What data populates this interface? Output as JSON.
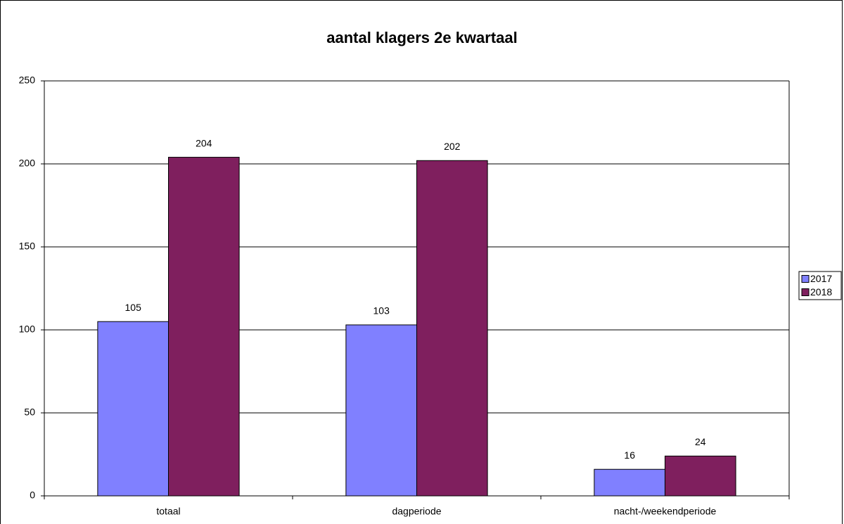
{
  "chart_data": {
    "type": "bar",
    "title": "aantal klagers 2e kwartaal",
    "categories": [
      "totaal",
      "dagperiode",
      "nacht-/weekendperiode"
    ],
    "series": [
      {
        "name": "2017",
        "color": "#8080ff",
        "values": [
          105,
          103,
          16
        ]
      },
      {
        "name": "2018",
        "color": "#7f1f5e",
        "values": [
          204,
          202,
          24
        ]
      }
    ],
    "ylim": [
      0,
      250
    ],
    "yticks": [
      0,
      50,
      100,
      150,
      200,
      250
    ],
    "grid": true,
    "legend": "right"
  }
}
